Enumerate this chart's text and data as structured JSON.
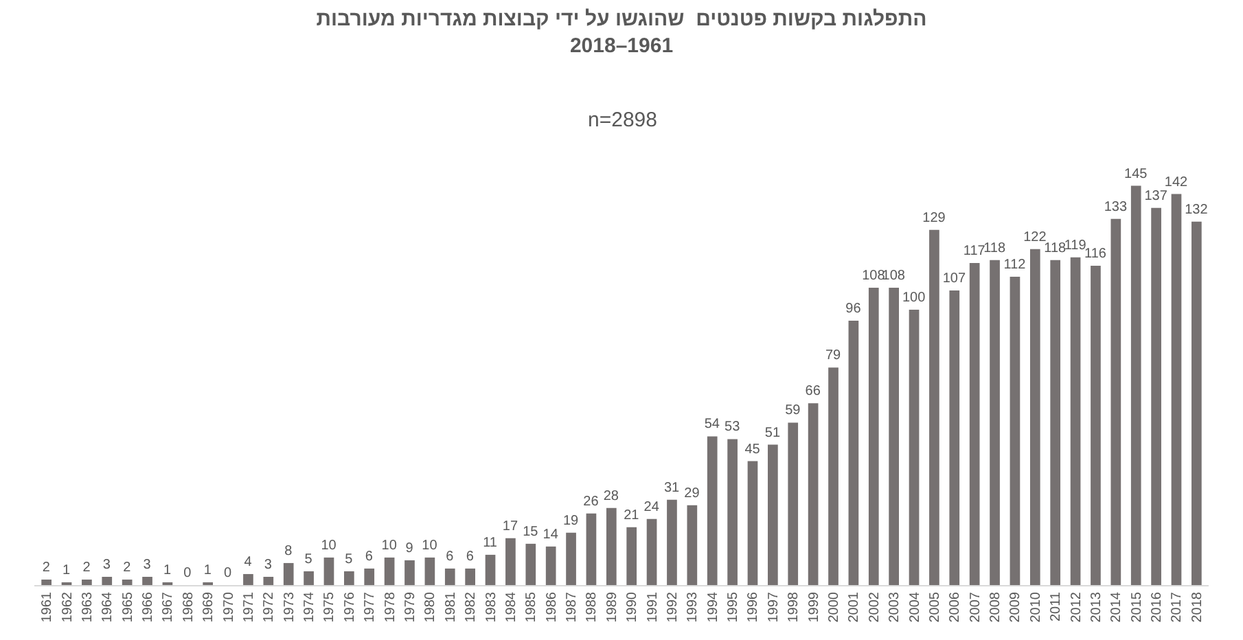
{
  "chart_data": {
    "type": "bar",
    "title": "התפלגות בקשות פטנטים  שהוגשו על ידי קבוצות מגדריות מעורבות\n2018–1961",
    "subtitle": "n=2898",
    "categories": [
      "1961",
      "1962",
      "1963",
      "1964",
      "1965",
      "1966",
      "1967",
      "1968",
      "1969",
      "1970",
      "1971",
      "1972",
      "1973",
      "1974",
      "1975",
      "1976",
      "1977",
      "1978",
      "1979",
      "1980",
      "1981",
      "1982",
      "1983",
      "1984",
      "1985",
      "1986",
      "1987",
      "1988",
      "1989",
      "1990",
      "1991",
      "1992",
      "1993",
      "1994",
      "1995",
      "1996",
      "1997",
      "1998",
      "1999",
      "2000",
      "2001",
      "2002",
      "2003",
      "2004",
      "2005",
      "2006",
      "2007",
      "2008",
      "2009",
      "2010",
      "2011",
      "2012",
      "2013",
      "2014",
      "2015",
      "2016",
      "2017",
      "2018"
    ],
    "values": [
      2,
      1,
      2,
      3,
      2,
      3,
      1,
      0,
      1,
      0,
      4,
      3,
      8,
      5,
      10,
      5,
      6,
      10,
      9,
      10,
      6,
      6,
      11,
      17,
      15,
      14,
      19,
      26,
      28,
      21,
      24,
      31,
      29,
      54,
      53,
      45,
      51,
      59,
      66,
      79,
      96,
      108,
      108,
      100,
      129,
      107,
      117,
      118,
      112,
      122,
      118,
      119,
      116,
      133,
      145,
      137,
      142,
      132
    ],
    "color": "#767171",
    "data_labels": true,
    "tick_labels": "x"
  }
}
